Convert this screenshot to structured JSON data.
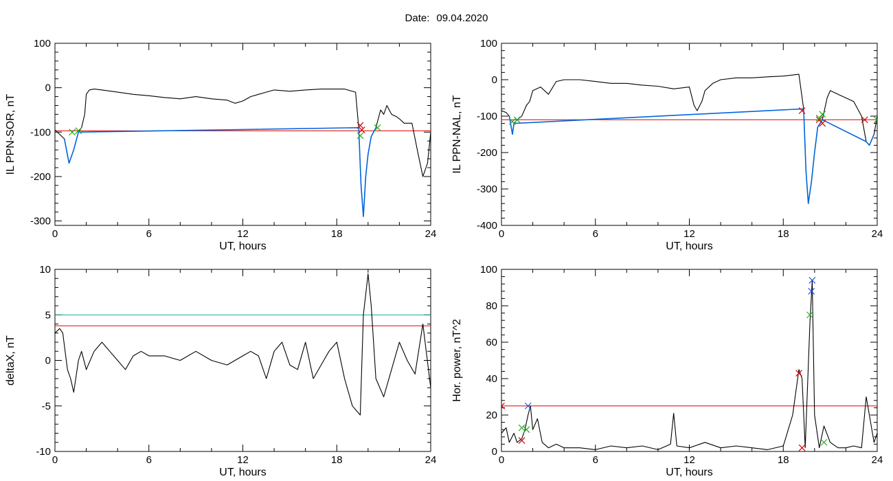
{
  "header": {
    "date_label": "Date:",
    "date_value": "09.04.2020"
  },
  "chart_data": [
    {
      "type": "line",
      "id": "sor",
      "xlabel": "UT, hours",
      "ylabel": "IL PPN-SOR, nT",
      "xlim": [
        0,
        24
      ],
      "ylim": [
        -310,
        100
      ],
      "xticks": [
        0,
        6,
        12,
        18,
        24
      ],
      "yticks": [
        100,
        0,
        -100,
        -200,
        -300
      ],
      "hlines": [
        {
          "y": -97,
          "color": "#dd0000"
        }
      ],
      "series": [
        {
          "color": "#000000",
          "x": [
            0,
            0.3,
            0.6,
            0.9,
            1.2,
            1.5,
            1.7,
            1.9,
            2.0,
            2.2,
            2.5,
            3,
            4,
            5,
            6,
            7,
            8,
            9,
            10,
            11,
            11.5,
            12,
            12.5,
            13,
            14,
            15,
            16,
            17,
            18,
            18.5,
            19.2,
            19.4,
            19.55,
            19.7,
            19.85,
            20.0,
            20.2,
            20.5,
            20.8,
            21.0,
            21.2,
            21.5,
            21.8,
            22,
            22.3,
            22.8,
            23.2,
            23.5,
            23.8,
            24
          ],
          "y": [
            -95,
            -105,
            -115,
            -170,
            -140,
            -100,
            -90,
            -60,
            -15,
            -5,
            -3,
            -5,
            -10,
            -15,
            -18,
            -22,
            -25,
            -20,
            -25,
            -28,
            -35,
            -30,
            -20,
            -15,
            -5,
            -8,
            -5,
            -3,
            -3,
            -3,
            -10,
            -90,
            -220,
            -290,
            -200,
            -150,
            -110,
            -90,
            -50,
            -60,
            -40,
            -60,
            -65,
            -70,
            -80,
            -80,
            -150,
            -200,
            -170,
            -100
          ]
        },
        {
          "color": "#0066dd",
          "x": [
            0.6,
            0.9,
            1.2,
            1.5,
            19.4,
            19.55,
            19.7,
            19.85,
            20.0,
            20.2,
            20.5
          ],
          "y": [
            -115,
            -170,
            -140,
            -100,
            -90,
            -220,
            -290,
            -200,
            -150,
            -110,
            -90
          ]
        }
      ],
      "markers": [
        {
          "x": 19.5,
          "y": -85,
          "color": "#dd0000"
        },
        {
          "x": 19.6,
          "y": -95,
          "color": "#dd0000"
        },
        {
          "x": 1.1,
          "y": -100,
          "color": "#22aa22"
        },
        {
          "x": 1.5,
          "y": -97,
          "color": "#22aa22"
        },
        {
          "x": 19.5,
          "y": -108,
          "color": "#22aa22"
        },
        {
          "x": 20.6,
          "y": -90,
          "color": "#22aa22"
        }
      ]
    },
    {
      "type": "line",
      "id": "nal",
      "xlabel": "UT, hours",
      "ylabel": "IL PPN-NAL, nT",
      "xlim": [
        0,
        24
      ],
      "ylim": [
        -400,
        100
      ],
      "xticks": [
        0,
        6,
        12,
        18,
        24
      ],
      "yticks": [
        100,
        0,
        -100,
        -200,
        -300,
        -400
      ],
      "hlines": [
        {
          "y": -110,
          "color": "#dd0000"
        }
      ],
      "series": [
        {
          "color": "#000000",
          "x": [
            0,
            0.3,
            0.5,
            0.7,
            0.8,
            1.0,
            1.3,
            1.6,
            1.8,
            2.0,
            2.5,
            3,
            3.5,
            4,
            5,
            6,
            7,
            8,
            9,
            10,
            11,
            12,
            12.3,
            12.5,
            12.8,
            13,
            13.5,
            14,
            15,
            16,
            17,
            18,
            19,
            19.3,
            19.45,
            19.6,
            19.8,
            20.0,
            20.2,
            20.5,
            20.8,
            21,
            21.5,
            22,
            22.5,
            23,
            23.3,
            23.5,
            23.8,
            24
          ],
          "y": [
            -85,
            -90,
            -100,
            -150,
            -120,
            -110,
            -100,
            -70,
            -60,
            -30,
            -20,
            -40,
            -5,
            0,
            0,
            -5,
            -10,
            -10,
            -15,
            -18,
            -25,
            -20,
            -70,
            -85,
            -60,
            -30,
            -10,
            0,
            5,
            5,
            8,
            10,
            15,
            -80,
            -250,
            -340,
            -280,
            -200,
            -130,
            -110,
            -50,
            -30,
            -40,
            -50,
            -60,
            -100,
            -170,
            -180,
            -150,
            -100
          ]
        },
        {
          "color": "#0066dd",
          "x": [
            0.5,
            0.7,
            0.8,
            19.3,
            19.45,
            19.6,
            19.8,
            20.0,
            20.2,
            20.5,
            23.3,
            23.5,
            23.8
          ],
          "y": [
            -100,
            -150,
            -120,
            -80,
            -250,
            -340,
            -280,
            -200,
            -130,
            -110,
            -170,
            -180,
            -150
          ]
        }
      ],
      "markers": [
        {
          "x": 19.2,
          "y": -85,
          "color": "#dd0000"
        },
        {
          "x": 20.3,
          "y": -110,
          "color": "#dd0000"
        },
        {
          "x": 20.5,
          "y": -120,
          "color": "#dd0000"
        },
        {
          "x": 23.2,
          "y": -110,
          "color": "#dd0000"
        },
        {
          "x": 0.7,
          "y": -115,
          "color": "#22aa22"
        },
        {
          "x": 1.0,
          "y": -110,
          "color": "#22aa22"
        },
        {
          "x": 20.3,
          "y": -105,
          "color": "#22aa22"
        },
        {
          "x": 20.5,
          "y": -95,
          "color": "#22aa22"
        },
        {
          "x": 24.0,
          "y": -110,
          "color": "#22aa22"
        }
      ]
    },
    {
      "type": "line",
      "id": "deltax",
      "xlabel": "UT, hours",
      "ylabel": "deltaX, nT",
      "xlim": [
        0,
        24
      ],
      "ylim": [
        -10,
        10
      ],
      "xticks": [
        0,
        6,
        12,
        18,
        24
      ],
      "yticks": [
        10,
        5,
        0,
        -5,
        -10
      ],
      "hlines": [
        {
          "y": 5,
          "color": "#11aa99"
        },
        {
          "y": 3.8,
          "color": "#dd0000"
        }
      ],
      "series": [
        {
          "color": "#000000",
          "x": [
            0,
            0.3,
            0.5,
            0.8,
            1.0,
            1.2,
            1.5,
            1.7,
            2.0,
            2.5,
            3,
            3.5,
            4,
            4.5,
            5,
            5.5,
            6,
            7,
            8,
            9,
            10,
            11,
            12,
            12.5,
            13,
            13.5,
            14,
            14.5,
            15,
            15.5,
            16,
            16.5,
            17,
            17.5,
            18,
            18.5,
            19,
            19.5,
            19.7,
            20,
            20.2,
            20.5,
            21,
            21.5,
            22,
            22.5,
            23,
            23.5,
            24
          ],
          "y": [
            3,
            3.5,
            3,
            -1,
            -2,
            -3.5,
            0,
            1,
            -1,
            1,
            2,
            1,
            0,
            -1,
            0.5,
            1,
            0.5,
            0.5,
            0,
            1,
            0,
            -0.5,
            0.5,
            1,
            0.5,
            -2,
            1,
            2,
            -0.5,
            -1,
            2,
            -2,
            -0.5,
            1,
            2,
            -2,
            -5,
            -6,
            5,
            9.5,
            6,
            -2,
            -4,
            -1,
            2,
            0,
            -1.5,
            4,
            -3
          ]
        }
      ],
      "markers": []
    },
    {
      "type": "line",
      "id": "power",
      "xlabel": "UT, hours",
      "ylabel": "Hor. power, nT^2",
      "xlim": [
        0,
        24
      ],
      "ylim": [
        0,
        100
      ],
      "xticks": [
        0,
        6,
        12,
        18,
        24
      ],
      "yticks": [
        100,
        80,
        60,
        40,
        20,
        0
      ],
      "hlines": [
        {
          "y": 25,
          "color": "#dd0000"
        }
      ],
      "series": [
        {
          "color": "#000000",
          "x": [
            0,
            0.3,
            0.5,
            0.8,
            1.0,
            1.3,
            1.5,
            1.7,
            1.85,
            2.0,
            2.3,
            2.6,
            3,
            3.5,
            4,
            5,
            6,
            7,
            8,
            9,
            10,
            10.8,
            11.0,
            11.2,
            12,
            13,
            14,
            15,
            16,
            17,
            18,
            18.6,
            19.0,
            19.2,
            19.4,
            19.7,
            19.85,
            20.0,
            20.3,
            20.6,
            21,
            21.5,
            22,
            22.5,
            23,
            23.3,
            23.5,
            23.8,
            24
          ],
          "y": [
            10,
            13,
            5,
            10,
            5,
            7,
            12,
            20,
            25,
            12,
            18,
            5,
            2,
            4,
            2,
            2,
            1,
            3,
            2,
            3,
            1,
            4,
            21,
            3,
            2,
            5,
            2,
            3,
            2,
            1,
            3,
            20,
            45,
            40,
            2,
            70,
            94,
            20,
            2,
            14,
            5,
            2,
            2,
            3,
            2,
            30,
            20,
            5,
            10
          ]
        }
      ],
      "markers": [
        {
          "x": 0.0,
          "y": 25,
          "color": "#dd0000"
        },
        {
          "x": 1.3,
          "y": 6,
          "color": "#dd0000"
        },
        {
          "x": 19.0,
          "y": 43,
          "color": "#dd0000"
        },
        {
          "x": 19.2,
          "y": 2,
          "color": "#dd0000"
        },
        {
          "x": 1.3,
          "y": 13,
          "color": "#22aa22"
        },
        {
          "x": 1.6,
          "y": 12,
          "color": "#22aa22"
        },
        {
          "x": 19.7,
          "y": 75,
          "color": "#22aa22"
        },
        {
          "x": 20.6,
          "y": 5,
          "color": "#22aa22"
        },
        {
          "x": 1.7,
          "y": 25,
          "color": "#2255dd"
        },
        {
          "x": 19.8,
          "y": 88,
          "color": "#2255dd"
        },
        {
          "x": 19.85,
          "y": 94,
          "color": "#2255dd"
        }
      ]
    }
  ]
}
